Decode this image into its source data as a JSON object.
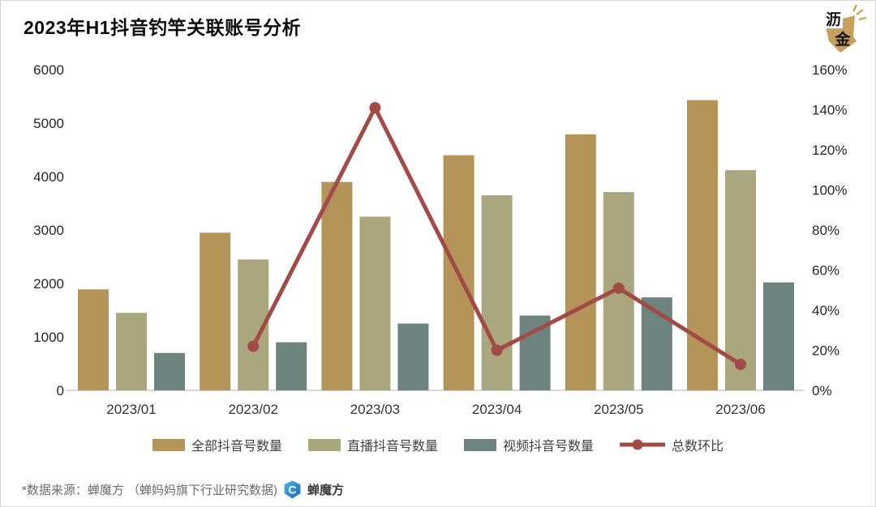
{
  "page": {
    "title": "2023年H1抖音钓竿关联账号分析"
  },
  "brand_badge": {
    "icon": "lijin-badge-icon",
    "char_top": "沥",
    "char_bottom": "金",
    "gold": "#C6A05C"
  },
  "chart_data": {
    "type": "bar",
    "combo": "bar+line dual axis",
    "title": "2023年H1抖音钓竿关联账号分析",
    "categories": [
      "2023/01",
      "2023/02",
      "2023/03",
      "2023/04",
      "2023/05",
      "2023/06"
    ],
    "series": [
      {
        "name": "全部抖音号数量",
        "type": "bar",
        "axis": "left",
        "color": "#B5945A",
        "values": [
          1890,
          2950,
          3900,
          4400,
          4790,
          5430
        ]
      },
      {
        "name": "直播抖音号数量",
        "type": "bar",
        "axis": "left",
        "color": "#AAA67E",
        "values": [
          1450,
          2450,
          3250,
          3650,
          3710,
          4120
        ]
      },
      {
        "name": "视频抖音号数量",
        "type": "bar",
        "axis": "left",
        "color": "#6D837E",
        "values": [
          700,
          900,
          1250,
          1400,
          1740,
          2020
        ]
      },
      {
        "name": "总数环比",
        "type": "line",
        "axis": "right",
        "color": "#A14A46",
        "unit": "%",
        "values": [
          null,
          22,
          141,
          20,
          51,
          13
        ]
      }
    ],
    "left_axis": {
      "min": 0,
      "max": 6000,
      "step": 1000,
      "tick_labels": [
        "0",
        "1000",
        "2000",
        "3000",
        "4000",
        "5000",
        "6000"
      ]
    },
    "right_axis": {
      "min": 0,
      "max": 160,
      "step": 20,
      "tick_labels": [
        "0%",
        "20%",
        "40%",
        "60%",
        "80%",
        "100%",
        "120%",
        "140%",
        "160%"
      ]
    },
    "grid": false,
    "legend_position": "bottom"
  },
  "footer": {
    "source_text": "*数据来源：蝉魔方 （蝉妈妈旗下行业研究数据)",
    "logo_icon": "chanmofang-logo-icon",
    "logo_glyph": "C",
    "brand_label": "蝉魔方",
    "logo_blue_top": "#41B9EA",
    "logo_blue_bottom": "#1F66B4"
  }
}
